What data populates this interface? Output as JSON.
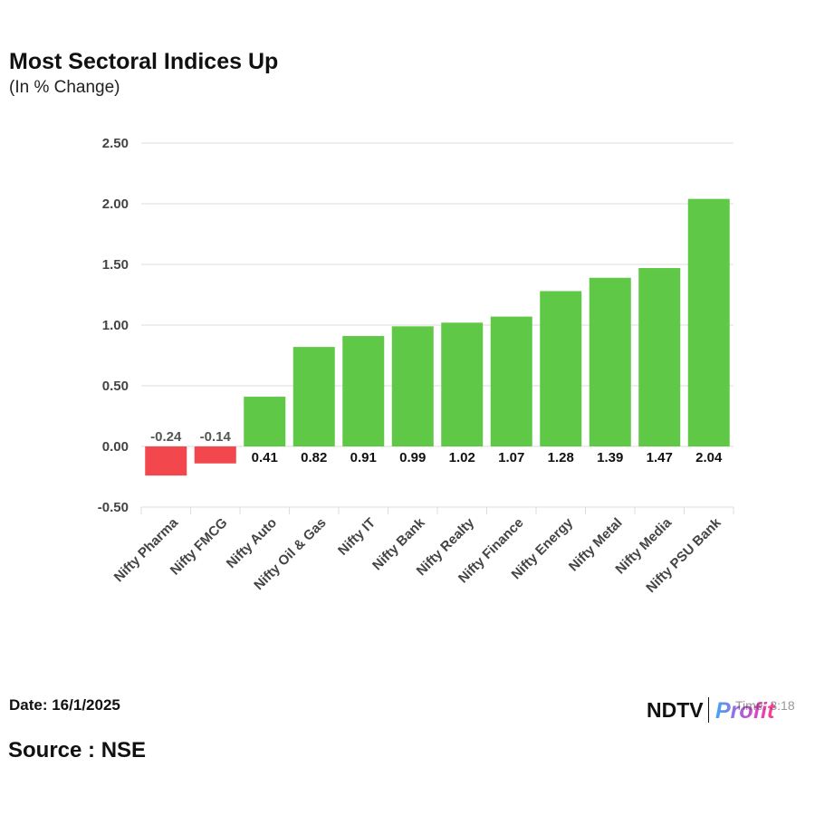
{
  "header": {
    "title": "Most Sectoral Indices Up",
    "subtitle": "(In % Change)"
  },
  "footer": {
    "date": "Date: 16/1/2025",
    "source": "Source : NSE",
    "logo_left": "NDTV",
    "logo_right": "Profit",
    "overlay_text": "Time: 3:18"
  },
  "colors": {
    "positive": "#5fc947",
    "negative": "#f2474d",
    "grid": "#dddddd",
    "axis_text": "#444444",
    "profit_gradient": [
      "#3fa9f5",
      "#c84bd6",
      "#ff3e8a"
    ]
  },
  "chart_data": {
    "type": "bar",
    "title": "Most Sectoral Indices Up",
    "subtitle": "(In % Change)",
    "categories": [
      "Nifty Pharma",
      "Nifty FMCG",
      "Nifty Auto",
      "Nifty Oil & Gas",
      "Nifty IT",
      "Nifty Bank",
      "Nifty Realty",
      "Nifty Finance",
      "Nifty Energy",
      "Nifty Metal",
      "Nifty Media",
      "Nifty PSU Bank"
    ],
    "values": [
      -0.24,
      -0.14,
      0.41,
      0.82,
      0.91,
      0.99,
      1.02,
      1.07,
      1.28,
      1.39,
      1.47,
      2.04
    ],
    "value_labels": [
      "-0.24",
      "-0.14",
      "0.41",
      "0.82",
      "0.91",
      "0.99",
      "1.02",
      "1.07",
      "1.28",
      "1.39",
      "1.47",
      "2.04"
    ],
    "yticks": [
      "-0.50",
      "0.00",
      "0.50",
      "1.00",
      "1.50",
      "2.00",
      "2.50"
    ],
    "ylim": [
      -0.5,
      2.5
    ],
    "grid": true,
    "legend": "none"
  }
}
